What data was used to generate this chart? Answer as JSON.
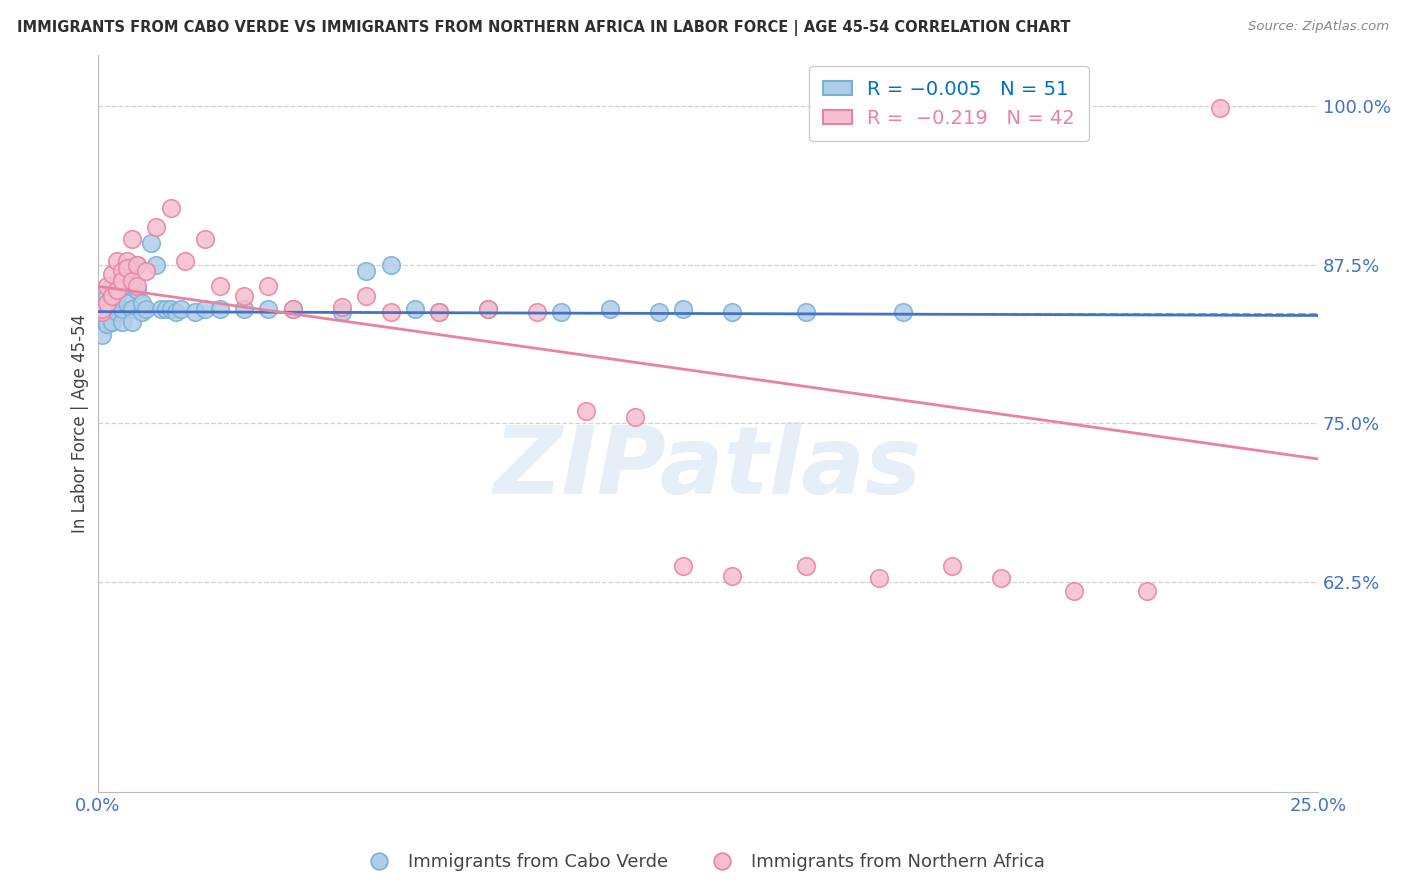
{
  "title": "IMMIGRANTS FROM CABO VERDE VS IMMIGRANTS FROM NORTHERN AFRICA IN LABOR FORCE | AGE 45-54 CORRELATION CHART",
  "source": "Source: ZipAtlas.com",
  "ylabel": "In Labor Force | Age 45-54",
  "xlim": [
    0.0,
    0.25
  ],
  "ylim": [
    0.46,
    1.04
  ],
  "yticks": [
    0.625,
    0.75,
    0.875,
    1.0
  ],
  "ytick_labels": [
    "62.5%",
    "75.0%",
    "87.5%",
    "100.0%"
  ],
  "xticks": [
    0.0,
    0.05,
    0.1,
    0.15,
    0.2,
    0.25
  ],
  "xtick_labels": [
    "0.0%",
    "",
    "",
    "",
    "",
    "25.0%"
  ],
  "cabo_verde": {
    "name": "Immigrants from Cabo Verde",
    "R": -0.005,
    "N": 51,
    "color": "#aecde8",
    "edge_color": "#7aafd4",
    "x": [
      0.001,
      0.001,
      0.001,
      0.002,
      0.002,
      0.002,
      0.003,
      0.003,
      0.003,
      0.004,
      0.004,
      0.004,
      0.005,
      0.005,
      0.005,
      0.006,
      0.006,
      0.007,
      0.007,
      0.007,
      0.008,
      0.008,
      0.009,
      0.009,
      0.01,
      0.011,
      0.012,
      0.013,
      0.014,
      0.015,
      0.016,
      0.017,
      0.02,
      0.022,
      0.025,
      0.03,
      0.035,
      0.04,
      0.05,
      0.055,
      0.06,
      0.065,
      0.07,
      0.08,
      0.095,
      0.105,
      0.115,
      0.12,
      0.13,
      0.145,
      0.165
    ],
    "y": [
      0.835,
      0.838,
      0.82,
      0.84,
      0.828,
      0.85,
      0.83,
      0.845,
      0.858,
      0.838,
      0.845,
      0.852,
      0.83,
      0.84,
      0.862,
      0.87,
      0.845,
      0.858,
      0.84,
      0.83,
      0.855,
      0.875,
      0.838,
      0.845,
      0.84,
      0.892,
      0.875,
      0.84,
      0.84,
      0.84,
      0.838,
      0.84,
      0.838,
      0.84,
      0.84,
      0.84,
      0.84,
      0.84,
      0.838,
      0.87,
      0.875,
      0.84,
      0.838,
      0.84,
      0.838,
      0.84,
      0.838,
      0.84,
      0.838,
      0.838,
      0.838
    ],
    "trend_x": [
      0.0,
      0.25
    ],
    "trend_y": [
      0.838,
      0.835
    ]
  },
  "northern_africa": {
    "name": "Immigrants from Northern Africa",
    "R": -0.219,
    "N": 42,
    "color": "#f5bece",
    "edge_color": "#e882a2",
    "x": [
      0.001,
      0.001,
      0.002,
      0.002,
      0.003,
      0.003,
      0.004,
      0.004,
      0.005,
      0.005,
      0.006,
      0.006,
      0.007,
      0.007,
      0.008,
      0.008,
      0.01,
      0.012,
      0.015,
      0.018,
      0.022,
      0.025,
      0.03,
      0.035,
      0.04,
      0.05,
      0.055,
      0.06,
      0.07,
      0.08,
      0.09,
      0.1,
      0.11,
      0.12,
      0.13,
      0.145,
      0.16,
      0.175,
      0.185,
      0.2,
      0.215,
      0.23
    ],
    "y": [
      0.838,
      0.84,
      0.845,
      0.858,
      0.85,
      0.868,
      0.878,
      0.855,
      0.87,
      0.862,
      0.878,
      0.872,
      0.862,
      0.895,
      0.858,
      0.875,
      0.87,
      0.905,
      0.92,
      0.878,
      0.895,
      0.858,
      0.85,
      0.858,
      0.84,
      0.842,
      0.85,
      0.838,
      0.838,
      0.84,
      0.838,
      0.76,
      0.755,
      0.638,
      0.63,
      0.638,
      0.628,
      0.638,
      0.628,
      0.618,
      0.618,
      0.998
    ],
    "trend_x": [
      0.0,
      0.25
    ],
    "trend_y": [
      0.858,
      0.722
    ]
  },
  "dashed_line_y": 0.836,
  "dashed_line_xstart": 0.135,
  "watermark": "ZIPatlas",
  "bg_color": "#ffffff",
  "grid_color": "#cccccc",
  "title_color": "#2f2f2f",
  "axis_label_color": "#4472c4",
  "trend_color_blue": "#4472c4",
  "trend_color_pink": "#e882a2",
  "legend_color_blue": "#0070c0",
  "legend_color_pink": "#e882a2",
  "legend_n_color": "#2f2f2f"
}
